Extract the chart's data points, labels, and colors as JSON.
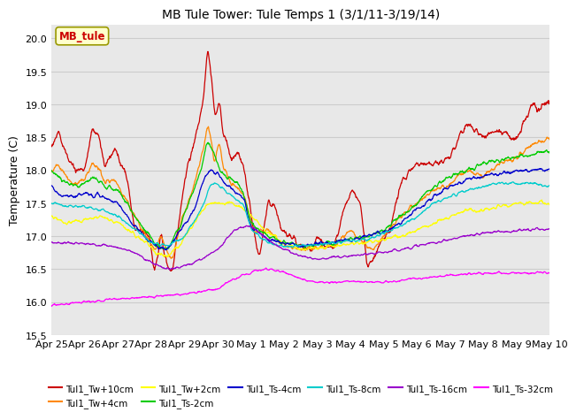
{
  "title": "MB Tule Tower: Tule Temps 1 (3/1/11-3/19/14)",
  "ylabel": "Temperature (C)",
  "ylim": [
    15.5,
    20.2
  ],
  "yticks": [
    15.5,
    16.0,
    16.5,
    17.0,
    17.5,
    18.0,
    18.5,
    19.0,
    19.5,
    20.0
  ],
  "xlim": [
    0,
    15
  ],
  "xtick_labels": [
    "Apr 25",
    "Apr 26",
    "Apr 27",
    "Apr 28",
    "Apr 29",
    "Apr 30",
    "May 1",
    "May 2",
    "May 3",
    "May 4",
    "May 5",
    "May 6",
    "May 7",
    "May 8",
    "May 9",
    "May 10"
  ],
  "series_colors": [
    "#cc0000",
    "#ff8800",
    "#ffff00",
    "#00cc00",
    "#0000cc",
    "#00cccc",
    "#9900cc",
    "#ff00ff"
  ],
  "series_labels": [
    "Tul1_Tw+10cm",
    "Tul1_Tw+4cm",
    "Tul1_Tw+2cm",
    "Tul1_Ts-2cm",
    "Tul1_Ts-4cm",
    "Tul1_Ts-8cm",
    "Tul1_Ts-16cm",
    "Tul1_Ts-32cm"
  ],
  "legend_box_color": "#ffffcc",
  "legend_box_edge": "#999900",
  "legend_box_text": "MB_tule",
  "legend_box_text_color": "#cc0000",
  "plot_bg_color": "#ffffff",
  "axes_bg_color": "#e8e8e8",
  "grid_color": "#cccccc",
  "title_fontsize": 10,
  "tick_fontsize": 8,
  "ylabel_fontsize": 9
}
